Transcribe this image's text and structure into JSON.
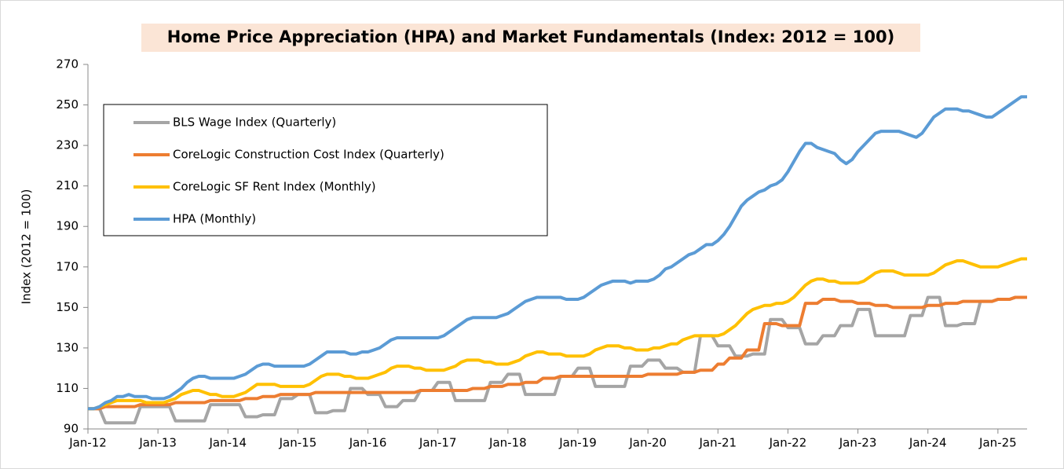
{
  "chart_data": {
    "type": "line",
    "title": "Home Price Appreciation (HPA) and Market Fundamentals (Index: 2012 = 100)",
    "y_label": "Index (2012 = 100)",
    "legend": "upper left",
    "categories": [
      "Jan-12",
      null,
      null,
      null,
      null,
      null,
      null,
      null,
      null,
      null,
      null,
      null,
      "Jan-13",
      null,
      null,
      null,
      null,
      null,
      null,
      null,
      null,
      null,
      null,
      null,
      "Jan-14",
      null,
      null,
      null,
      null,
      null,
      null,
      null,
      null,
      null,
      null,
      null,
      "Jan-15",
      null,
      null,
      null,
      null,
      null,
      null,
      null,
      null,
      null,
      null,
      null,
      "Jan-16",
      null,
      null,
      null,
      null,
      null,
      null,
      null,
      null,
      null,
      null,
      null,
      "Jan-17",
      null,
      null,
      null,
      null,
      null,
      null,
      null,
      null,
      null,
      null,
      null,
      "Jan-18",
      null,
      null,
      null,
      null,
      null,
      null,
      null,
      null,
      null,
      null,
      null,
      "Jan-19",
      null,
      null,
      null,
      null,
      null,
      null,
      null,
      null,
      null,
      null,
      null,
      "Jan-20",
      null,
      null,
      null,
      null,
      null,
      null,
      null,
      null,
      null,
      null,
      null,
      "Jan-21",
      null,
      null,
      null,
      null,
      null,
      null,
      null,
      null,
      null,
      null,
      null,
      "Jan-22",
      null,
      null,
      null,
      null,
      null,
      null,
      null,
      null,
      null,
      null,
      null,
      "Jan-23",
      null,
      null,
      null,
      null,
      null,
      null,
      null,
      null,
      null,
      null,
      null,
      "Jan-24",
      null,
      null,
      null,
      null,
      null,
      null,
      null,
      null,
      null,
      null,
      null,
      "Jan-25",
      null,
      null,
      null,
      null,
      null
    ],
    "ylim": [
      90,
      270
    ],
    "yticks": [
      90,
      110,
      130,
      150,
      170,
      190,
      210,
      230,
      250,
      270
    ],
    "series": [
      {
        "name": "BLS Wage Index (Quarterly)",
        "color": "#a5a5a5",
        "values": [
          100,
          100,
          100,
          93,
          93,
          93,
          93,
          93,
          93,
          101,
          101,
          101,
          101,
          101,
          101,
          94,
          94,
          94,
          94,
          94,
          94,
          102,
          102,
          102,
          102,
          102,
          102,
          96,
          96,
          96,
          97,
          97,
          97,
          105,
          105,
          105,
          107,
          107,
          107,
          98,
          98,
          98,
          99,
          99,
          99,
          110,
          110,
          110,
          107,
          107,
          107,
          101,
          101,
          101,
          104,
          104,
          104,
          109,
          109,
          109,
          113,
          113,
          113,
          104,
          104,
          104,
          104,
          104,
          104,
          113,
          113,
          113,
          117,
          117,
          117,
          107,
          107,
          107,
          107,
          107,
          107,
          116,
          116,
          116,
          120,
          120,
          120,
          111,
          111,
          111,
          111,
          111,
          111,
          121,
          121,
          121,
          124,
          124,
          124,
          120,
          120,
          120,
          118,
          118,
          118,
          136,
          136,
          136,
          131,
          131,
          131,
          126,
          126,
          126,
          127,
          127,
          127,
          144,
          144,
          144,
          140,
          140,
          140,
          132,
          132,
          132,
          136,
          136,
          136,
          141,
          141,
          141,
          149,
          149,
          149,
          136,
          136,
          136,
          136,
          136,
          136,
          146,
          146,
          146,
          155,
          155,
          155,
          141,
          141,
          141,
          142,
          142,
          142,
          153,
          153,
          153,
          154,
          154,
          154,
          155,
          155,
          155
        ]
      },
      {
        "name": "CoreLogic Construction Cost Index (Quarterly)",
        "color": "#ed7d31",
        "values": [
          100,
          100,
          100,
          101,
          101,
          101,
          101,
          101,
          101,
          102,
          102,
          102,
          102,
          102,
          102,
          103,
          103,
          103,
          103,
          103,
          103,
          104,
          104,
          104,
          104,
          104,
          104,
          105,
          105,
          105,
          106,
          106,
          106,
          107,
          107,
          107,
          107,
          107,
          107,
          108,
          108,
          108,
          108,
          108,
          108,
          108,
          108,
          108,
          108,
          108,
          108,
          108,
          108,
          108,
          108,
          108,
          108,
          109,
          109,
          109,
          109,
          109,
          109,
          109,
          109,
          109,
          110,
          110,
          110,
          111,
          111,
          111,
          112,
          112,
          112,
          113,
          113,
          113,
          115,
          115,
          115,
          116,
          116,
          116,
          116,
          116,
          116,
          116,
          116,
          116,
          116,
          116,
          116,
          116,
          116,
          116,
          117,
          117,
          117,
          117,
          117,
          117,
          118,
          118,
          118,
          119,
          119,
          119,
          122,
          122,
          125,
          125,
          125,
          129,
          129,
          129,
          142,
          142,
          142,
          141,
          141,
          141,
          141,
          152,
          152,
          152,
          154,
          154,
          154,
          153,
          153,
          153,
          152,
          152,
          152,
          151,
          151,
          151,
          150,
          150,
          150,
          150,
          150,
          150,
          151,
          151,
          151,
          152,
          152,
          152,
          153,
          153,
          153,
          153,
          153,
          153,
          154,
          154,
          154,
          155,
          155,
          155
        ]
      },
      {
        "name": "CoreLogic SF Rent Index (Monthly)",
        "color": "#ffc000",
        "values": [
          100,
          100,
          101,
          102,
          103,
          104,
          104,
          104,
          104,
          104,
          103,
          103,
          103,
          103,
          104,
          105,
          107,
          108,
          109,
          109,
          108,
          107,
          107,
          106,
          106,
          106,
          107,
          108,
          110,
          112,
          112,
          112,
          112,
          111,
          111,
          111,
          111,
          111,
          112,
          114,
          116,
          117,
          117,
          117,
          116,
          116,
          115,
          115,
          115,
          116,
          117,
          118,
          120,
          121,
          121,
          121,
          120,
          120,
          119,
          119,
          119,
          119,
          120,
          121,
          123,
          124,
          124,
          124,
          123,
          123,
          122,
          122,
          122,
          123,
          124,
          126,
          127,
          128,
          128,
          127,
          127,
          127,
          126,
          126,
          126,
          126,
          127,
          129,
          130,
          131,
          131,
          131,
          130,
          130,
          129,
          129,
          129,
          130,
          130,
          131,
          132,
          132,
          134,
          135,
          136,
          136,
          136,
          136,
          136,
          137,
          139,
          141,
          144,
          147,
          149,
          150,
          151,
          151,
          152,
          152,
          153,
          155,
          158,
          161,
          163,
          164,
          164,
          163,
          163,
          162,
          162,
          162,
          162,
          163,
          165,
          167,
          168,
          168,
          168,
          167,
          166,
          166,
          166,
          166,
          166,
          167,
          169,
          171,
          172,
          173,
          173,
          172,
          171,
          170,
          170,
          170,
          170,
          171,
          172,
          173,
          174,
          174
        ]
      },
      {
        "name": "HPA (Monthly)",
        "color": "#5b9bd5",
        "values": [
          100,
          100,
          101,
          103,
          104,
          106,
          106,
          107,
          106,
          106,
          106,
          105,
          105,
          105,
          106,
          108,
          110,
          113,
          115,
          116,
          116,
          115,
          115,
          115,
          115,
          115,
          116,
          117,
          119,
          121,
          122,
          122,
          121,
          121,
          121,
          121,
          121,
          121,
          122,
          124,
          126,
          128,
          128,
          128,
          128,
          127,
          127,
          128,
          128,
          129,
          130,
          132,
          134,
          135,
          135,
          135,
          135,
          135,
          135,
          135,
          135,
          136,
          138,
          140,
          142,
          144,
          145,
          145,
          145,
          145,
          145,
          146,
          147,
          149,
          151,
          153,
          154,
          155,
          155,
          155,
          155,
          155,
          154,
          154,
          154,
          155,
          157,
          159,
          161,
          162,
          163,
          163,
          163,
          162,
          163,
          163,
          163,
          164,
          166,
          169,
          170,
          172,
          174,
          176,
          177,
          179,
          181,
          181,
          183,
          186,
          190,
          195,
          200,
          203,
          205,
          207,
          208,
          210,
          211,
          213,
          217,
          222,
          227,
          231,
          231,
          229,
          228,
          227,
          226,
          223,
          221,
          223,
          227,
          230,
          233,
          236,
          237,
          237,
          237,
          237,
          236,
          235,
          234,
          236,
          240,
          244,
          246,
          248,
          248,
          248,
          247,
          247,
          246,
          245,
          244,
          244,
          246,
          248,
          250,
          252,
          254,
          254
        ]
      }
    ]
  }
}
